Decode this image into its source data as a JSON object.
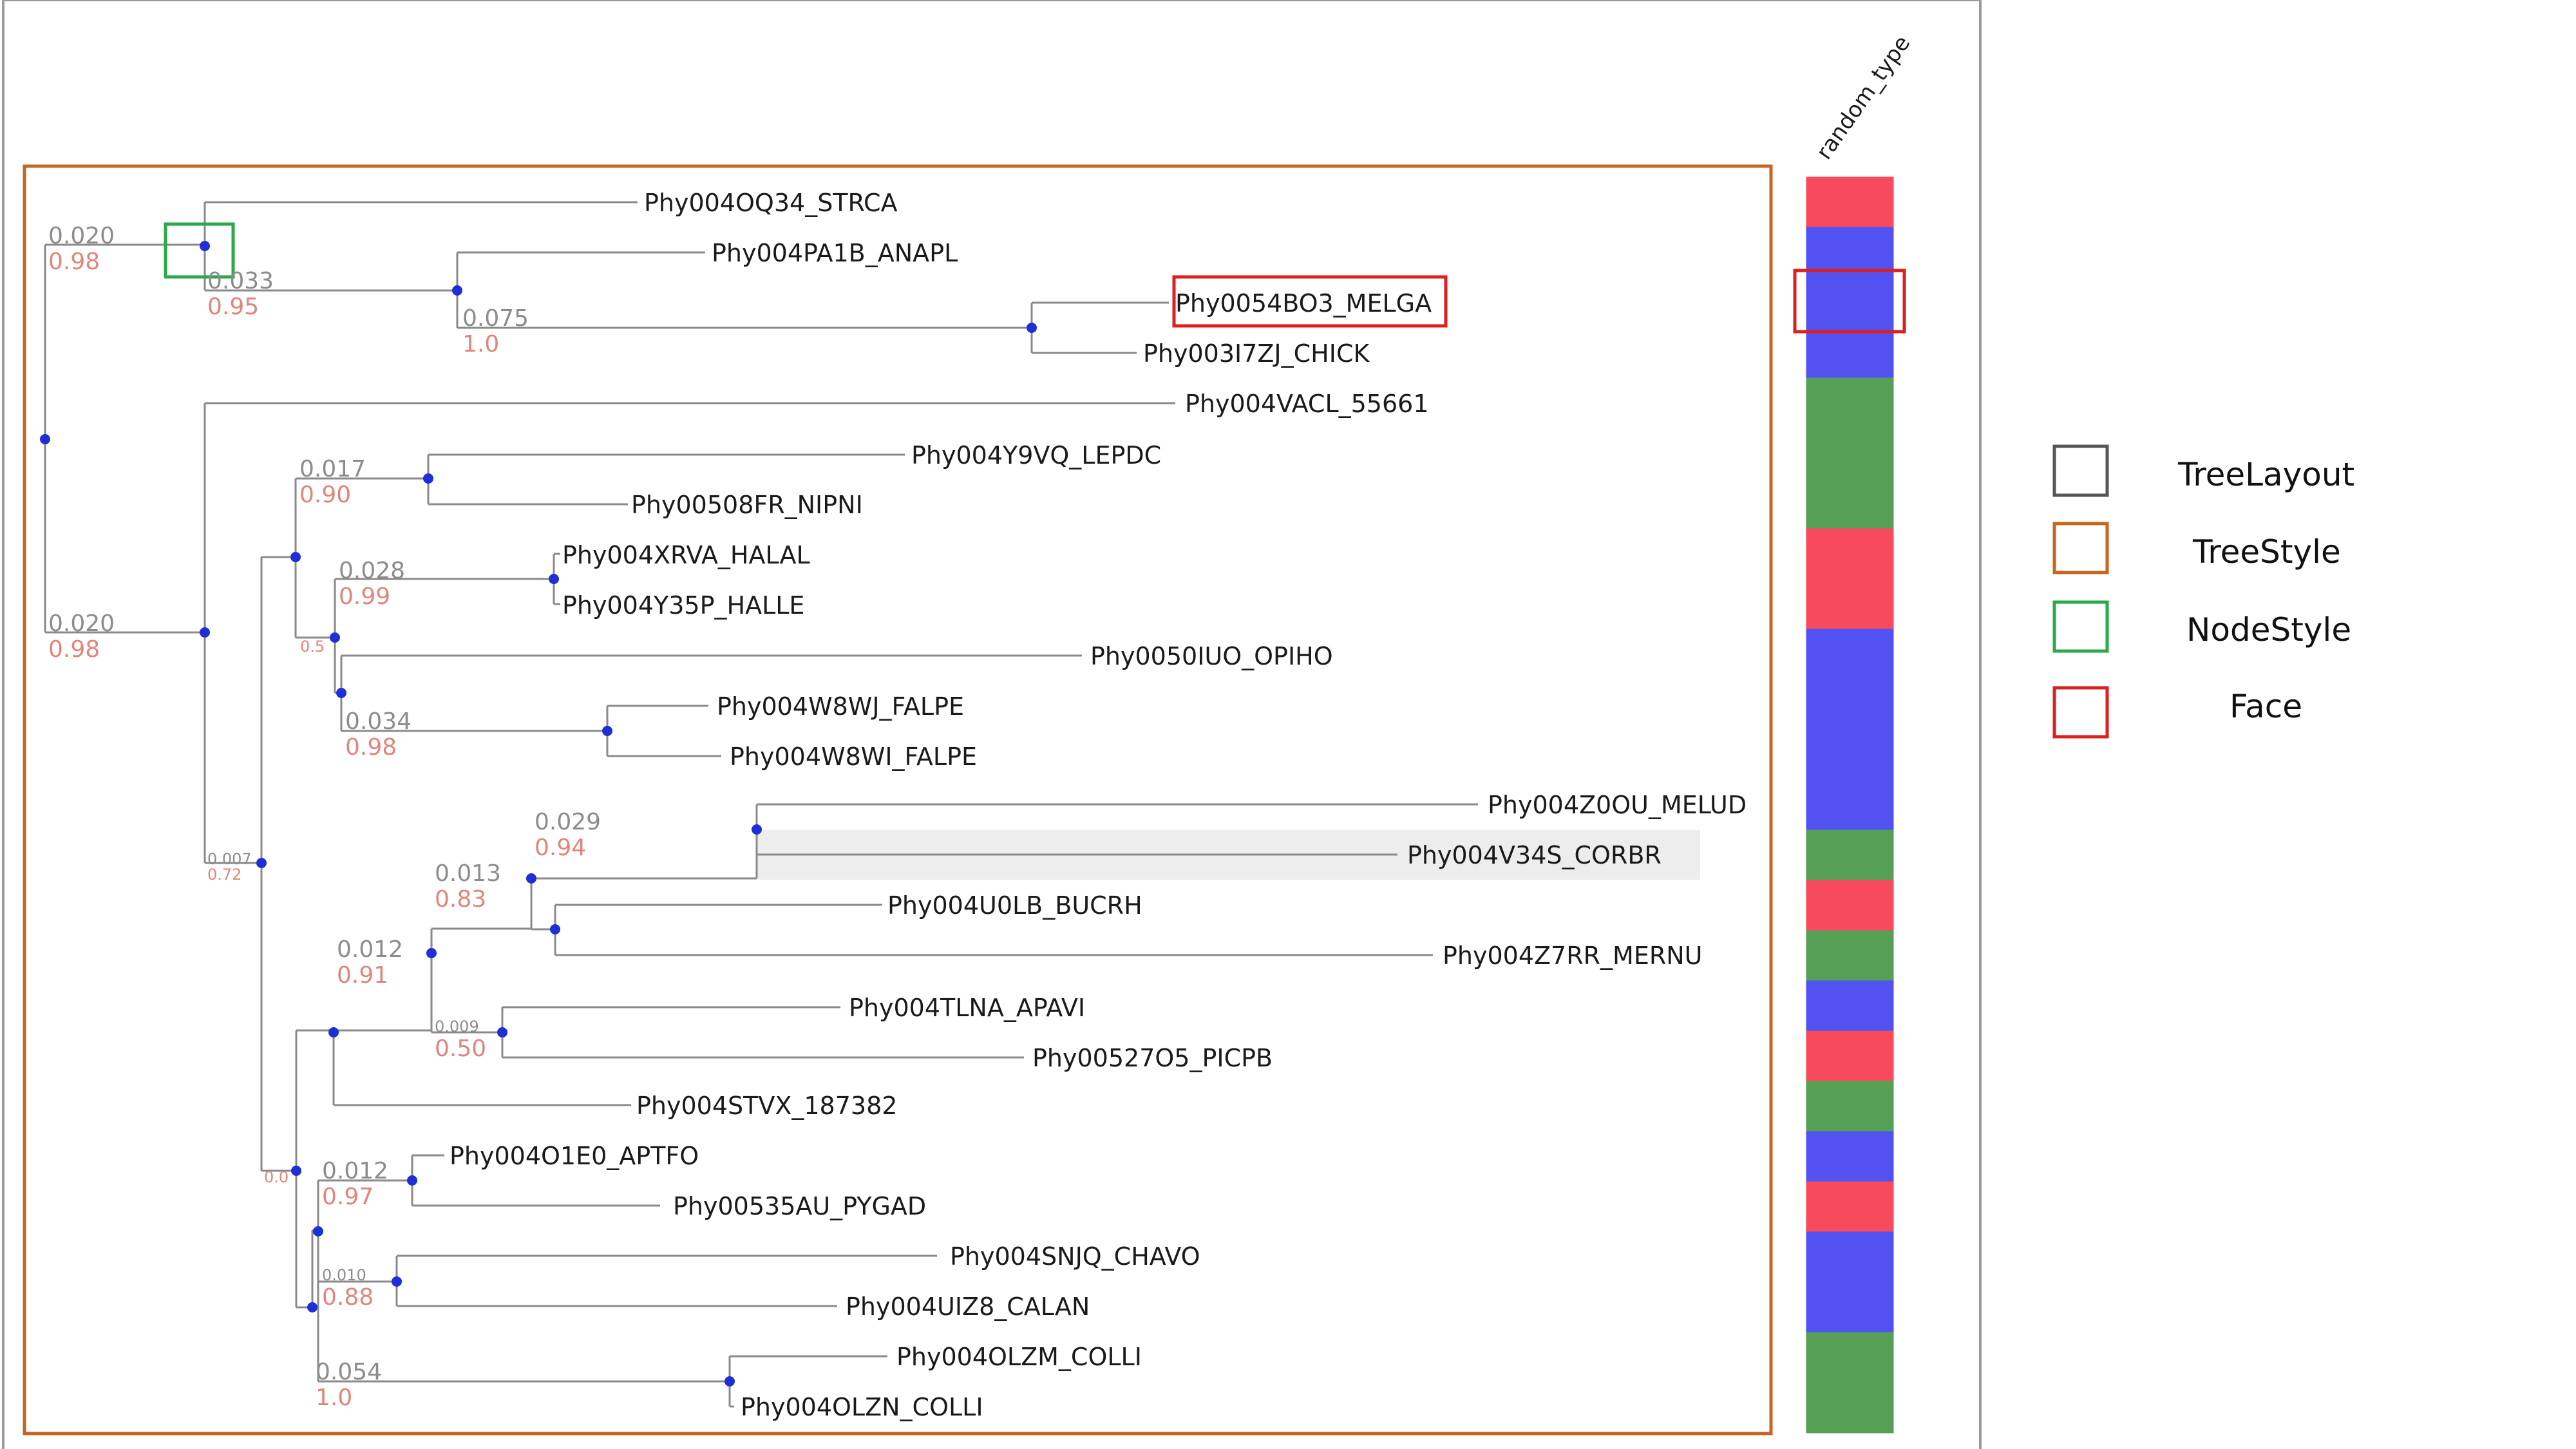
{
  "column_header": "random_type",
  "colors": {
    "red": "#f74a5c",
    "blue": "#5252f2",
    "green": "#55a055",
    "tree_layout": "#555555",
    "tree_style": "#c8641e",
    "node_style": "#2aa84a",
    "face": "#dd1f1f",
    "branch": "#8a8a8a",
    "node": "#1f2fd6"
  },
  "leaves": [
    {
      "name": "Phy004OQ34_STRCA",
      "type": "red"
    },
    {
      "name": "Phy004PA1B_ANAPL",
      "type": "blue"
    },
    {
      "name": "Phy0054BO3_MELGA",
      "type": "blue"
    },
    {
      "name": "Phy003I7ZJ_CHICK",
      "type": "blue"
    },
    {
      "name": "Phy004VACL_55661",
      "type": "green"
    },
    {
      "name": "Phy004Y9VQ_LEPDC",
      "type": "green"
    },
    {
      "name": "Phy00508FR_NIPNI",
      "type": "green"
    },
    {
      "name": "Phy004XRVA_HALAL",
      "type": "red"
    },
    {
      "name": "Phy004Y35P_HALLE",
      "type": "red"
    },
    {
      "name": "Phy0050IUO_OPIHO",
      "type": "blue"
    },
    {
      "name": "Phy004W8WJ_FALPE",
      "type": "blue"
    },
    {
      "name": "Phy004W8WI_FALPE",
      "type": "blue"
    },
    {
      "name": "Phy004Z0OU_MELUD",
      "type": "blue"
    },
    {
      "name": "Phy004V34S_CORBR",
      "type": "green"
    },
    {
      "name": "Phy004U0LB_BUCRH",
      "type": "red"
    },
    {
      "name": "Phy004Z7RR_MERNU",
      "type": "green"
    },
    {
      "name": "Phy004TLNA_APAVI",
      "type": "blue"
    },
    {
      "name": "Phy00527O5_PICPB",
      "type": "red"
    },
    {
      "name": "Phy004STVX_187382",
      "type": "green"
    },
    {
      "name": "Phy004O1E0_APTFO",
      "type": "blue"
    },
    {
      "name": "Phy00535AU_PYGAD",
      "type": "red"
    },
    {
      "name": "Phy004SNJQ_CHAVO",
      "type": "blue"
    },
    {
      "name": "Phy004UIZ8_CALAN",
      "type": "blue"
    },
    {
      "name": "Phy004OLZM_COLLI",
      "type": "green"
    },
    {
      "name": "Phy004OLZN_COLLI",
      "type": "green"
    }
  ],
  "branch_annotations": [
    {
      "dist": "0.020",
      "support": "0.98"
    },
    {
      "dist": "0.033",
      "support": "0.95"
    },
    {
      "dist": "0.075",
      "support": "1.0"
    },
    {
      "dist": "0.020",
      "support": "0.98"
    },
    {
      "dist": "0.017",
      "support": "0.90"
    },
    {
      "dist": "0.028",
      "support": "0.99"
    },
    {
      "dist": "",
      "support": "0.5"
    },
    {
      "dist": "0.034",
      "support": "0.98"
    },
    {
      "dist": "0.007",
      "support": "0.72"
    },
    {
      "dist": "0.029",
      "support": "0.94"
    },
    {
      "dist": "0.013",
      "support": "0.83"
    },
    {
      "dist": "0.012",
      "support": "0.91"
    },
    {
      "dist": "0.009",
      "support": "0.50"
    },
    {
      "dist": "",
      "support": "0.0"
    },
    {
      "dist": "0.012",
      "support": "0.97"
    },
    {
      "dist": "0.010",
      "support": "0.88"
    },
    {
      "dist": "0.054",
      "support": "1.0"
    }
  ],
  "legend": [
    {
      "label": "TreeLayout",
      "color_key": "tree_layout"
    },
    {
      "label": "TreeStyle",
      "color_key": "tree_style"
    },
    {
      "label": "NodeStyle",
      "color_key": "node_style"
    },
    {
      "label": "Face",
      "color_key": "face"
    }
  ]
}
